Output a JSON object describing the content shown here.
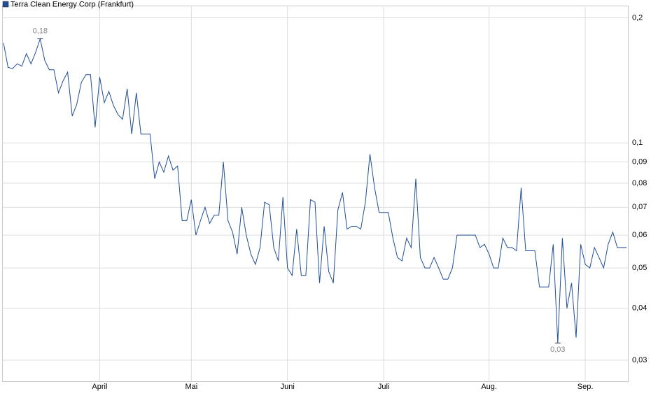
{
  "chart_data": {
    "type": "line",
    "categories": [
      null,
      null,
      null,
      null,
      null,
      null,
      null,
      null,
      null,
      null,
      null,
      null,
      null,
      null,
      null,
      null,
      null,
      null,
      null,
      null,
      null,
      "April",
      null,
      null,
      null,
      null,
      null,
      null,
      null,
      null,
      null,
      null,
      null,
      null,
      null,
      null,
      null,
      null,
      null,
      null,
      null,
      "Mai",
      null,
      null,
      null,
      null,
      null,
      null,
      null,
      null,
      null,
      null,
      null,
      null,
      null,
      null,
      null,
      null,
      null,
      null,
      null,
      null,
      "Juni",
      null,
      null,
      null,
      null,
      null,
      null,
      null,
      null,
      null,
      null,
      null,
      null,
      null,
      null,
      null,
      null,
      null,
      null,
      null,
      null,
      "Juli",
      null,
      null,
      null,
      null,
      null,
      null,
      null,
      null,
      null,
      null,
      null,
      null,
      null,
      null,
      null,
      null,
      null,
      null,
      null,
      null,
      null,
      null,
      "Aug.",
      null,
      null,
      null,
      null,
      null,
      null,
      null,
      null,
      null,
      null,
      null,
      null,
      null,
      null,
      null,
      null,
      null,
      null,
      null,
      null,
      "Sep.",
      null,
      null,
      null,
      null,
      null,
      null,
      null,
      null,
      null
    ],
    "series": [
      {
        "name": "Terra Clean Energy Corp (Frankfurt)",
        "color": "#1f4e96",
        "values": [
          0.174,
          0.152,
          0.151,
          0.155,
          0.153,
          0.164,
          0.155,
          0.165,
          0.178,
          0.158,
          0.15,
          0.15,
          0.132,
          0.141,
          0.148,
          0.116,
          0.124,
          0.14,
          0.146,
          0.146,
          0.109,
          0.144,
          0.125,
          0.133,
          0.123,
          0.117,
          0.114,
          0.135,
          0.105,
          0.132,
          0.105,
          0.105,
          0.105,
          0.082,
          0.09,
          0.085,
          0.093,
          0.086,
          0.088,
          0.065,
          0.065,
          0.073,
          0.06,
          0.065,
          0.07,
          0.064,
          0.067,
          0.067,
          0.09,
          0.065,
          0.061,
          0.054,
          0.07,
          0.06,
          0.054,
          0.051,
          0.056,
          0.072,
          0.071,
          0.056,
          0.052,
          0.074,
          0.05,
          0.048,
          0.062,
          0.048,
          0.048,
          0.073,
          0.072,
          0.046,
          0.063,
          0.049,
          0.046,
          0.069,
          0.076,
          0.062,
          0.063,
          0.063,
          0.062,
          0.072,
          0.094,
          0.078,
          0.068,
          0.068,
          0.068,
          0.059,
          0.053,
          0.052,
          0.059,
          0.056,
          0.082,
          0.053,
          0.05,
          0.05,
          0.053,
          0.05,
          0.047,
          0.047,
          0.05,
          0.06,
          0.06,
          0.06,
          0.06,
          0.06,
          0.056,
          0.057,
          0.054,
          0.05,
          0.05,
          0.059,
          0.056,
          0.056,
          0.055,
          0.078,
          0.055,
          0.055,
          0.055,
          0.045,
          0.045,
          0.045,
          0.057,
          0.033,
          0.059,
          0.04,
          0.046,
          0.034,
          0.057,
          0.051,
          0.05,
          0.056,
          0.053,
          0.05,
          0.057,
          0.061,
          0.056,
          0.056,
          0.056
        ],
        "value_labels": [
          null,
          null,
          null,
          null,
          null,
          null,
          null,
          null,
          "0,18",
          null,
          null,
          null,
          null,
          null,
          null,
          null,
          null,
          null,
          null,
          null,
          null,
          null,
          null,
          null,
          null,
          null,
          null,
          null,
          null,
          null,
          null,
          null,
          null,
          null,
          null,
          null,
          null,
          null,
          null,
          null,
          null,
          null,
          null,
          null,
          null,
          null,
          null,
          null,
          null,
          null,
          null,
          null,
          null,
          null,
          null,
          null,
          null,
          null,
          null,
          null,
          null,
          null,
          null,
          null,
          null,
          null,
          null,
          null,
          null,
          null,
          null,
          null,
          null,
          null,
          null,
          null,
          null,
          null,
          null,
          null,
          null,
          null,
          null,
          null,
          null,
          null,
          null,
          null,
          null,
          null,
          null,
          null,
          null,
          null,
          null,
          null,
          null,
          null,
          null,
          null,
          null,
          null,
          null,
          null,
          null,
          null,
          null,
          null,
          null,
          null,
          null,
          null,
          null,
          null,
          null,
          null,
          null,
          null,
          null,
          null,
          null,
          "0,03",
          null,
          null,
          null,
          null,
          null,
          null,
          null,
          null,
          null,
          null,
          null,
          null,
          null,
          null,
          null
        ]
      }
    ],
    "ylim": [
      0.0267,
      0.214
    ],
    "yticks": [
      {
        "value": 0.03,
        "label": "0,03"
      },
      {
        "value": 0.04,
        "label": "0,04"
      },
      {
        "value": 0.05,
        "label": "0,05"
      },
      {
        "value": 0.06,
        "label": "0,06"
      },
      {
        "value": 0.07,
        "label": "0,07"
      },
      {
        "value": 0.08,
        "label": "0,08"
      },
      {
        "value": 0.09,
        "label": "0,09"
      },
      {
        "value": 0.1,
        "label": "0,1"
      },
      {
        "value": 0.2,
        "label": "0,2"
      }
    ],
    "log_scale": true,
    "grid": true,
    "legend": "top-left"
  }
}
